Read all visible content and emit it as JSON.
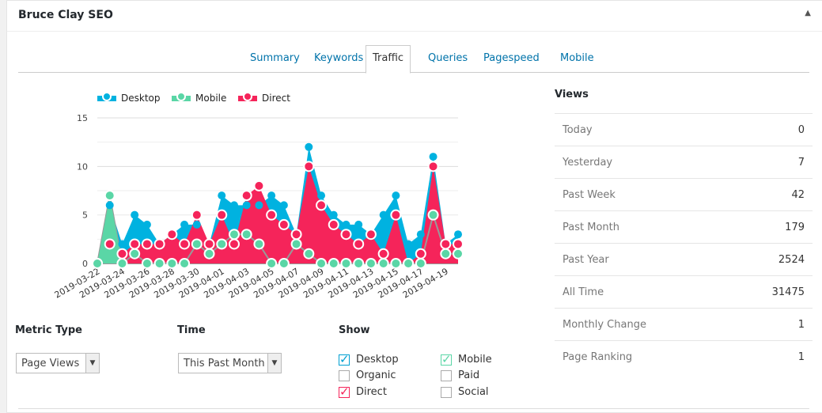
{
  "header": {
    "title": "Bruce Clay SEO",
    "toggle": "▲"
  },
  "tabs": [
    "Summary",
    "Keywords",
    "Traffic",
    "Queries",
    "Pagespeed",
    "Mobile"
  ],
  "active_tab": "Traffic",
  "views": {
    "title": "Views",
    "rows": [
      {
        "label": "Today",
        "value": "0"
      },
      {
        "label": "Yesterday",
        "value": "7"
      },
      {
        "label": "Past Week",
        "value": "42"
      },
      {
        "label": "Past Month",
        "value": "179"
      },
      {
        "label": "Past Year",
        "value": "2524"
      },
      {
        "label": "All Time",
        "value": "31475"
      },
      {
        "label": "Monthly Change",
        "value": "1"
      },
      {
        "label": "Page Ranking",
        "value": "1"
      }
    ]
  },
  "controls": {
    "metric_label": "Metric Type",
    "metric_value": "Page Views",
    "time_label": "Time",
    "time_value": "This Past Month",
    "show_label": "Show",
    "checkboxes": [
      {
        "label": "Desktop",
        "checked": true,
        "color": "#00a0d2"
      },
      {
        "label": "Mobile",
        "checked": true,
        "color": "#5ad6a6"
      },
      {
        "label": "Organic",
        "checked": false
      },
      {
        "label": "Paid",
        "checked": false
      },
      {
        "label": "Direct",
        "checked": true,
        "color": "#f5245a"
      },
      {
        "label": "Social",
        "checked": false
      }
    ]
  },
  "chart_data": {
    "type": "area",
    "ylim": [
      0,
      15
    ],
    "yticks": [
      0,
      5,
      10,
      15
    ],
    "x": [
      "2019-03-22",
      "2019-03-23",
      "2019-03-24",
      "2019-03-25",
      "2019-03-26",
      "2019-03-27",
      "2019-03-28",
      "2019-03-29",
      "2019-03-30",
      "2019-03-31",
      "2019-04-01",
      "2019-04-02",
      "2019-04-03",
      "2019-04-04",
      "2019-04-05",
      "2019-04-06",
      "2019-04-07",
      "2019-04-08",
      "2019-04-09",
      "2019-04-10",
      "2019-04-11",
      "2019-04-12",
      "2019-04-13",
      "2019-04-14",
      "2019-04-15",
      "2019-04-16",
      "2019-04-17",
      "2019-04-18",
      "2019-04-19",
      "2019-04-20"
    ],
    "xticks": [
      "2019-03-22",
      "2019-03-24",
      "2019-03-26",
      "2019-03-28",
      "2019-03-30",
      "2019-04-01",
      "2019-04-03",
      "2019-04-05",
      "2019-04-07",
      "2019-04-09",
      "2019-04-11",
      "2019-04-13",
      "2019-04-15",
      "2019-04-17",
      "2019-04-19"
    ],
    "series": [
      {
        "name": "Desktop",
        "color": "#00b2e0",
        "values": [
          0,
          6,
          2,
          5,
          4,
          2,
          3,
          4,
          4,
          2,
          7,
          6,
          6,
          6,
          7,
          6,
          3,
          12,
          7,
          5,
          4,
          4,
          3,
          5,
          7,
          2,
          3,
          11,
          2,
          3
        ]
      },
      {
        "name": "Direct",
        "color": "#f5245a",
        "values": [
          0,
          2,
          1,
          2,
          2,
          2,
          3,
          2,
          5,
          2,
          5,
          2,
          7,
          8,
          5,
          4,
          3,
          10,
          6,
          4,
          3,
          2,
          3,
          1,
          5,
          0,
          1,
          10,
          2,
          2
        ]
      },
      {
        "name": "Mobile",
        "color": "#5ad6a6",
        "values": [
          0,
          7,
          0,
          1,
          0,
          0,
          0,
          0,
          2,
          1,
          2,
          3,
          3,
          2,
          0,
          0,
          2,
          1,
          0,
          0,
          0,
          0,
          0,
          0,
          0,
          0,
          0,
          5,
          1,
          1
        ]
      }
    ]
  }
}
